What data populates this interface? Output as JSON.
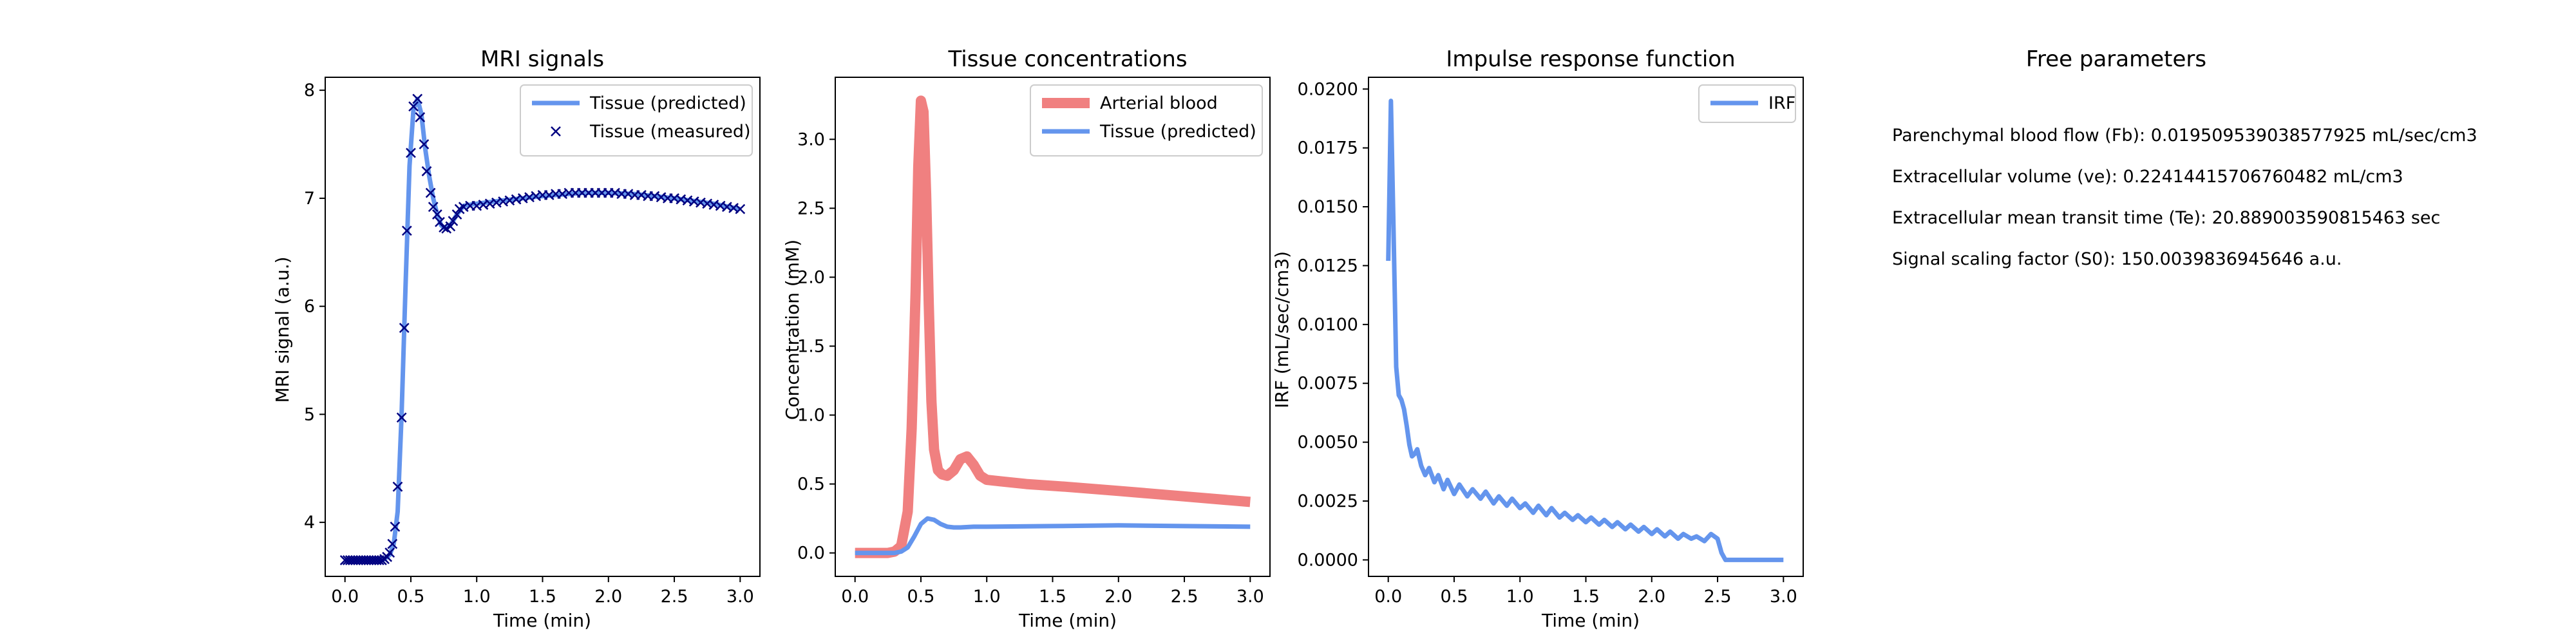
{
  "colors": {
    "tissue": "#6495ED",
    "measured": "#000080",
    "arterial": "#F08080",
    "irf": "#6495ED"
  },
  "chart_data": [
    {
      "type": "line",
      "title": "MRI signals",
      "xlabel": "Time (min)",
      "ylabel": "MRI signal (a.u.)",
      "xlim": [
        -0.15,
        3.15
      ],
      "ylim": [
        3.5,
        8.12
      ],
      "xticks": [
        0.0,
        0.5,
        1.0,
        1.5,
        2.0,
        2.5,
        3.0
      ],
      "yticks": [
        4,
        5,
        6,
        7,
        8
      ],
      "xtick_labels": [
        "0.0",
        "0.5",
        "1.0",
        "1.5",
        "2.0",
        "2.5",
        "3.0"
      ],
      "ytick_labels": [
        "4",
        "5",
        "6",
        "7",
        "8"
      ],
      "legend_position": "top-right",
      "series": [
        {
          "name": "Tissue (predicted)",
          "style": "line",
          "x": [
            0,
            0.3,
            0.34,
            0.37,
            0.4,
            0.43,
            0.46,
            0.49,
            0.52,
            0.55,
            0.58,
            0.61,
            0.64,
            0.67,
            0.7,
            0.73,
            0.76,
            0.8,
            0.85,
            0.9,
            1.0,
            1.2,
            1.5,
            1.8,
            2.0,
            2.2,
            2.5,
            2.8,
            3.0
          ],
          "y": [
            3.65,
            3.66,
            3.7,
            3.8,
            4.1,
            5.0,
            6.2,
            7.3,
            7.82,
            7.92,
            7.78,
            7.45,
            7.2,
            7.0,
            6.85,
            6.75,
            6.72,
            6.75,
            6.85,
            6.93,
            6.95,
            6.98,
            7.02,
            7.05,
            7.05,
            7.04,
            7.0,
            6.95,
            6.9
          ]
        },
        {
          "name": "Tissue (measured)",
          "style": "marker-x",
          "x": [
            0.0,
            0.02,
            0.04,
            0.06,
            0.08,
            0.1,
            0.12,
            0.14,
            0.16,
            0.18,
            0.2,
            0.22,
            0.24,
            0.26,
            0.28,
            0.3,
            0.32,
            0.34,
            0.36,
            0.38,
            0.4,
            0.43,
            0.45,
            0.47,
            0.5,
            0.52,
            0.55,
            0.57,
            0.6,
            0.62,
            0.65,
            0.67,
            0.7,
            0.72,
            0.75,
            0.77,
            0.8,
            0.82,
            0.85,
            0.87,
            0.9,
            0.95,
            1.0,
            1.05,
            1.1,
            1.15,
            1.2,
            1.25,
            1.3,
            1.35,
            1.4,
            1.45,
            1.5,
            1.55,
            1.6,
            1.65,
            1.7,
            1.75,
            1.8,
            1.85,
            1.9,
            1.95,
            2.0,
            2.05,
            2.1,
            2.15,
            2.2,
            2.25,
            2.3,
            2.35,
            2.4,
            2.45,
            2.5,
            2.55,
            2.6,
            2.65,
            2.7,
            2.75,
            2.8,
            2.85,
            2.9,
            2.95,
            3.0
          ],
          "y": [
            3.65,
            3.65,
            3.65,
            3.65,
            3.65,
            3.65,
            3.65,
            3.65,
            3.65,
            3.65,
            3.65,
            3.65,
            3.65,
            3.65,
            3.65,
            3.66,
            3.68,
            3.72,
            3.8,
            3.96,
            4.33,
            4.97,
            5.8,
            6.7,
            7.42,
            7.85,
            7.92,
            7.75,
            7.5,
            7.25,
            7.05,
            6.92,
            6.85,
            6.78,
            6.73,
            6.72,
            6.74,
            6.79,
            6.85,
            6.9,
            6.92,
            6.93,
            6.93,
            6.94,
            6.95,
            6.96,
            6.97,
            6.98,
            6.99,
            7.0,
            7.01,
            7.02,
            7.03,
            7.03,
            7.04,
            7.04,
            7.05,
            7.05,
            7.05,
            7.05,
            7.05,
            7.05,
            7.05,
            7.05,
            7.04,
            7.04,
            7.03,
            7.03,
            7.02,
            7.02,
            7.01,
            7.0,
            7.0,
            6.99,
            6.98,
            6.97,
            6.96,
            6.95,
            6.94,
            6.93,
            6.92,
            6.91,
            6.9
          ]
        }
      ]
    },
    {
      "type": "line",
      "title": "Tissue concentrations",
      "xlabel": "Time (min)",
      "ylabel": "Concentration (mM)",
      "xlim": [
        -0.15,
        3.15
      ],
      "ylim": [
        -0.17,
        3.45
      ],
      "xticks": [
        0.0,
        0.5,
        1.0,
        1.5,
        2.0,
        2.5,
        3.0
      ],
      "yticks": [
        0.0,
        0.5,
        1.0,
        1.5,
        2.0,
        2.5,
        3.0
      ],
      "xtick_labels": [
        "0.0",
        "0.5",
        "1.0",
        "1.5",
        "2.0",
        "2.5",
        "3.0"
      ],
      "ytick_labels": [
        "0.0",
        "0.5",
        "1.0",
        "1.5",
        "2.0",
        "2.5",
        "3.0"
      ],
      "legend_position": "top-right",
      "series": [
        {
          "name": "Arterial blood",
          "style": "thick-line",
          "x": [
            0,
            0.25,
            0.3,
            0.35,
            0.4,
            0.43,
            0.46,
            0.48,
            0.5,
            0.52,
            0.54,
            0.56,
            0.58,
            0.6,
            0.63,
            0.66,
            0.7,
            0.75,
            0.8,
            0.85,
            0.9,
            0.95,
            1.0,
            1.1,
            1.3,
            1.6,
            2.0,
            2.5,
            3.0
          ],
          "y": [
            0,
            0,
            0.01,
            0.05,
            0.3,
            0.9,
            1.9,
            2.8,
            3.28,
            3.2,
            2.6,
            1.8,
            1.1,
            0.75,
            0.6,
            0.57,
            0.56,
            0.6,
            0.68,
            0.7,
            0.64,
            0.56,
            0.53,
            0.52,
            0.5,
            0.48,
            0.45,
            0.41,
            0.37
          ]
        },
        {
          "name": "Tissue (predicted)",
          "style": "line",
          "x": [
            0,
            0.3,
            0.35,
            0.4,
            0.45,
            0.5,
            0.55,
            0.6,
            0.65,
            0.7,
            0.75,
            0.8,
            0.9,
            1.0,
            1.5,
            2.0,
            2.5,
            3.0
          ],
          "y": [
            0,
            0,
            0.01,
            0.04,
            0.12,
            0.21,
            0.25,
            0.24,
            0.21,
            0.19,
            0.185,
            0.185,
            0.19,
            0.19,
            0.195,
            0.2,
            0.195,
            0.19
          ]
        }
      ]
    },
    {
      "type": "line",
      "title": "Impulse response function",
      "xlabel": "Time (min)",
      "ylabel": "IRF (mL/sec/cm3)",
      "xlim": [
        -0.15,
        3.15
      ],
      "ylim": [
        -0.0007,
        0.0205
      ],
      "xticks": [
        0.0,
        0.5,
        1.0,
        1.5,
        2.0,
        2.5,
        3.0
      ],
      "yticks": [
        0.0,
        0.0025,
        0.005,
        0.0075,
        0.01,
        0.0125,
        0.015,
        0.0175,
        0.02
      ],
      "xtick_labels": [
        "0.0",
        "0.5",
        "1.0",
        "1.5",
        "2.0",
        "2.5",
        "3.0"
      ],
      "ytick_labels": [
        "0.0000",
        "0.0025",
        "0.0050",
        "0.0075",
        "0.0100",
        "0.0125",
        "0.0150",
        "0.0175",
        "0.0200"
      ],
      "legend_position": "top-right",
      "series": [
        {
          "name": "IRF",
          "style": "line",
          "x": [
            0,
            0.02,
            0.04,
            0.06,
            0.08,
            0.1,
            0.12,
            0.14,
            0.16,
            0.18,
            0.2,
            0.22,
            0.25,
            0.28,
            0.31,
            0.35,
            0.38,
            0.42,
            0.45,
            0.5,
            0.54,
            0.6,
            0.64,
            0.7,
            0.74,
            0.8,
            0.84,
            0.9,
            0.94,
            1.0,
            1.04,
            1.1,
            1.14,
            1.2,
            1.24,
            1.3,
            1.34,
            1.4,
            1.44,
            1.5,
            1.54,
            1.6,
            1.64,
            1.7,
            1.74,
            1.8,
            1.84,
            1.9,
            1.94,
            2.0,
            2.04,
            2.1,
            2.14,
            2.2,
            2.24,
            2.3,
            2.34,
            2.4,
            2.45,
            2.5,
            2.53,
            2.56,
            2.6,
            3.0
          ],
          "y": [
            0.0127,
            0.0195,
            0.014,
            0.0082,
            0.007,
            0.0068,
            0.0064,
            0.0057,
            0.0049,
            0.0044,
            0.0045,
            0.0047,
            0.004,
            0.0036,
            0.0039,
            0.0033,
            0.0036,
            0.003,
            0.0034,
            0.0028,
            0.0032,
            0.0027,
            0.003,
            0.0026,
            0.0029,
            0.0024,
            0.0027,
            0.0023,
            0.0026,
            0.0022,
            0.0024,
            0.002,
            0.0023,
            0.0019,
            0.0022,
            0.0018,
            0.002,
            0.0017,
            0.0019,
            0.0016,
            0.0018,
            0.0015,
            0.0017,
            0.0014,
            0.0016,
            0.0013,
            0.0015,
            0.0012,
            0.0014,
            0.0011,
            0.0013,
            0.001,
            0.0012,
            0.0009,
            0.0011,
            0.0009,
            0.001,
            0.0008,
            0.0011,
            0.0009,
            0.0003,
            0.0,
            0.0,
            0.0
          ]
        }
      ]
    }
  ],
  "params": {
    "title": "Free parameters",
    "lines": [
      "Parenchymal blood flow (Fb): 0.019509539038577925 mL/sec/cm3",
      "Extracellular volume (ve): 0.22414415706760482 mL/cm3",
      "Extracellular mean transit time (Te): 20.889003590815463 sec",
      "Signal scaling factor (S0): 150.0039836945646 a.u."
    ]
  }
}
